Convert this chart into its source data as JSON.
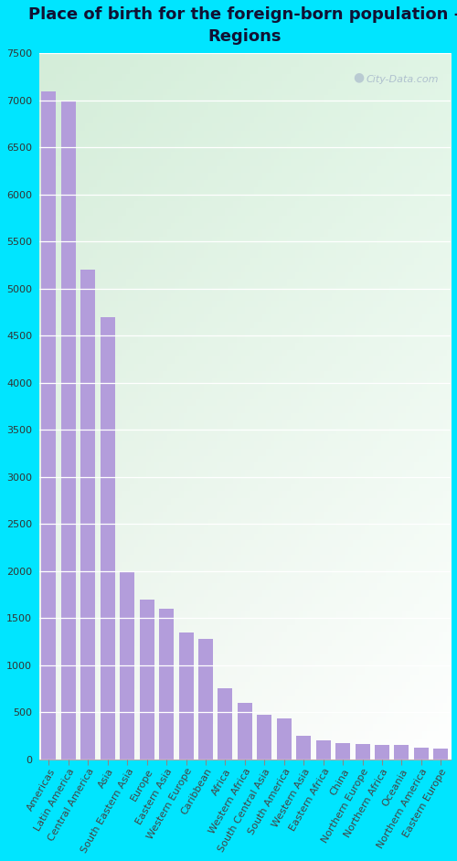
{
  "title": "Place of birth for the foreign-born population -\nRegions",
  "categories": [
    "Americas",
    "Latin America",
    "Central America",
    "Asia",
    "South Eastern Asia",
    "Europe",
    "Eastern Asia",
    "Western Europe",
    "Caribbean",
    "Africa",
    "Western Africa",
    "South Central Asia",
    "South America",
    "Western Asia",
    "Eastern Africa",
    "China",
    "Northern Europe",
    "Northern Africa",
    "Oceania",
    "Northern America",
    "Eastern Europe"
  ],
  "values": [
    7100,
    7000,
    5200,
    4700,
    2000,
    1700,
    1600,
    1350,
    1280,
    750,
    600,
    470,
    430,
    250,
    200,
    170,
    165,
    155,
    150,
    120,
    110
  ],
  "bar_color": "#b39ddb",
  "fig_bg": "#00e5ff",
  "ylim_max": 7500,
  "ytick_step": 500,
  "title_fontsize": 13,
  "label_fontsize": 8,
  "ytick_fontsize": 8,
  "watermark_text": "City-Data.com",
  "grid_color": "#dddddd"
}
